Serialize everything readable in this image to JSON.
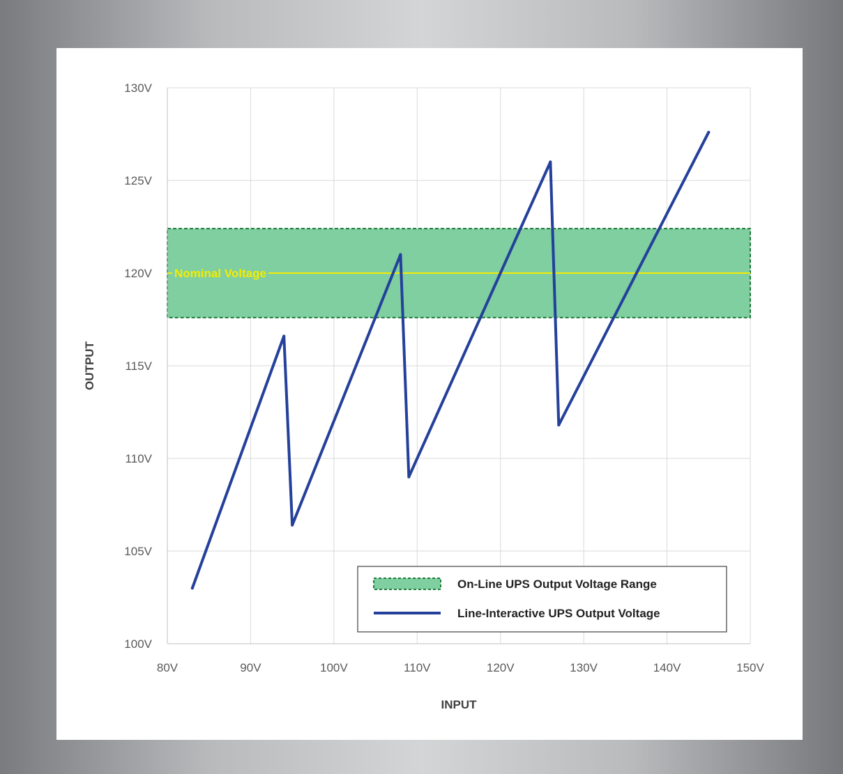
{
  "chart_data": {
    "type": "line",
    "xlabel": "INPUT",
    "ylabel": "OUTPUT",
    "xlim": [
      80,
      150
    ],
    "ylim": [
      100,
      130
    ],
    "x_ticks": [
      80,
      90,
      100,
      110,
      120,
      130,
      140,
      150
    ],
    "y_ticks": [
      100,
      105,
      110,
      115,
      120,
      125,
      130
    ],
    "x_tick_labels": [
      "80V",
      "90V",
      "100V",
      "110V",
      "120V",
      "130V",
      "140V",
      "150V"
    ],
    "y_tick_labels": [
      "100V",
      "105V",
      "110V",
      "115V",
      "120V",
      "125V",
      "130V"
    ],
    "grid": true,
    "band": {
      "name": "On-Line UPS Output Voltage Range",
      "y_range": [
        117.6,
        122.4
      ],
      "color": "#7fcfa1",
      "border_color": "#1e7a3a"
    },
    "reference_line": {
      "label": "Nominal Voltage",
      "y": 120,
      "color": "#f5ec00"
    },
    "series": [
      {
        "name": "Line-Interactive UPS Output Voltage",
        "color": "#24409a",
        "x": [
          83,
          94,
          95,
          108,
          109,
          126,
          127,
          145
        ],
        "y": [
          103,
          116.6,
          106.4,
          121,
          109,
          126,
          111.8,
          127.6
        ]
      }
    ],
    "legend_position": "bottom-right"
  }
}
